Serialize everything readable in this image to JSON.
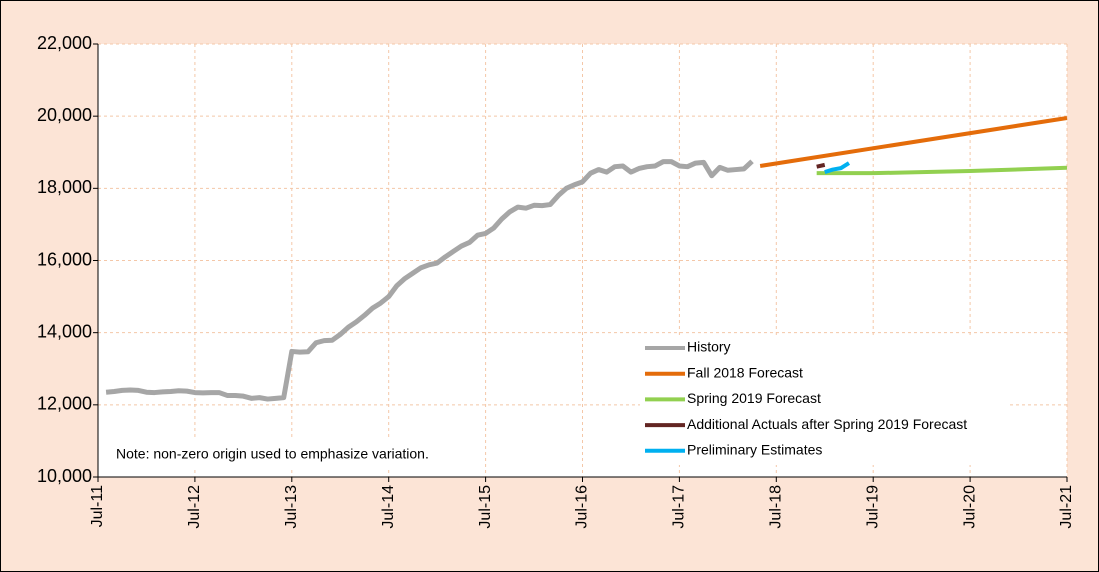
{
  "chart_data": {
    "type": "line",
    "note": "Note: non-zero origin used to emphasize variation.",
    "ylim": [
      10000,
      22000
    ],
    "yticks": [
      {
        "value": 10000,
        "label": "10,000"
      },
      {
        "value": 12000,
        "label": "12,000"
      },
      {
        "value": 14000,
        "label": "14,000"
      },
      {
        "value": 16000,
        "label": "16,000"
      },
      {
        "value": 18000,
        "label": "18,000"
      },
      {
        "value": 20000,
        "label": "20,000"
      },
      {
        "value": 22000,
        "label": "22,000"
      }
    ],
    "xlim": [
      "2011-07",
      "2021-07"
    ],
    "xticks": [
      {
        "value": "2011-07",
        "label": "Jul-11"
      },
      {
        "value": "2012-07",
        "label": "Jul-12"
      },
      {
        "value": "2013-07",
        "label": "Jul-13"
      },
      {
        "value": "2014-07",
        "label": "Jul-14"
      },
      {
        "value": "2015-07",
        "label": "Jul-15"
      },
      {
        "value": "2016-07",
        "label": "Jul-16"
      },
      {
        "value": "2017-07",
        "label": "Jul-17"
      },
      {
        "value": "2018-07",
        "label": "Jul-18"
      },
      {
        "value": "2019-07",
        "label": "Jul-19"
      },
      {
        "value": "2020-07",
        "label": "Jul-20"
      },
      {
        "value": "2021-07",
        "label": "Jul-21"
      }
    ],
    "grid": true,
    "series": [
      {
        "name": "History",
        "color": "#a6a6a6",
        "x": [
          "2011-08",
          "2011-09",
          "2011-10",
          "2011-11",
          "2011-12",
          "2012-01",
          "2012-02",
          "2012-03",
          "2012-04",
          "2012-05",
          "2012-06",
          "2012-07",
          "2012-08",
          "2012-09",
          "2012-10",
          "2012-11",
          "2012-12",
          "2013-01",
          "2013-02",
          "2013-03",
          "2013-04",
          "2013-05",
          "2013-06",
          "2013-07",
          "2013-08",
          "2013-09",
          "2013-10",
          "2013-11",
          "2013-12",
          "2014-01",
          "2014-02",
          "2014-03",
          "2014-04",
          "2014-05",
          "2014-06",
          "2014-07",
          "2014-08",
          "2014-09",
          "2014-10",
          "2014-11",
          "2014-12",
          "2015-01",
          "2015-02",
          "2015-03",
          "2015-04",
          "2015-05",
          "2015-06",
          "2015-07",
          "2015-08",
          "2015-09",
          "2015-10",
          "2015-11",
          "2015-12",
          "2016-01",
          "2016-02",
          "2016-03",
          "2016-04",
          "2016-05",
          "2016-06",
          "2016-07",
          "2016-08",
          "2016-09",
          "2016-10",
          "2016-11",
          "2016-12",
          "2017-01",
          "2017-02",
          "2017-03",
          "2017-04",
          "2017-05",
          "2017-06",
          "2017-07",
          "2017-08",
          "2017-09",
          "2017-10",
          "2017-11",
          "2017-12",
          "2018-01",
          "2018-02",
          "2018-03",
          "2018-04"
        ],
        "values": [
          12350,
          12370,
          12400,
          12410,
          12400,
          12350,
          12340,
          12360,
          12370,
          12390,
          12380,
          12340,
          12330,
          12340,
          12340,
          12260,
          12260,
          12240,
          12180,
          12200,
          12160,
          12180,
          12200,
          13480,
          13460,
          13470,
          13720,
          13780,
          13790,
          13950,
          14150,
          14300,
          14480,
          14680,
          14820,
          15000,
          15300,
          15500,
          15650,
          15800,
          15880,
          15930,
          16100,
          16250,
          16400,
          16500,
          16700,
          16750,
          16900,
          17150,
          17350,
          17480,
          17450,
          17530,
          17520,
          17550,
          17800,
          18000,
          18100,
          18180,
          18420,
          18520,
          18450,
          18600,
          18620,
          18450,
          18550,
          18600,
          18620,
          18740,
          18740,
          18620,
          18600,
          18700,
          18720,
          18350,
          18580,
          18500,
          18520,
          18540,
          18750
        ]
      },
      {
        "name": "Fall 2018 Forecast",
        "color": "#e46c0a",
        "x": [
          "2018-05",
          "2021-07"
        ],
        "values": [
          18620,
          19950
        ]
      },
      {
        "name": "Spring 2019 Forecast",
        "color": "#92d050",
        "x": [
          "2018-12",
          "2019-07",
          "2020-07",
          "2021-07"
        ],
        "values": [
          18420,
          18420,
          18480,
          18570
        ]
      },
      {
        "name": "Additional Actuals after Spring 2019 Forecast",
        "color": "#632523",
        "x": [
          "2018-12",
          "2019-01"
        ],
        "values": [
          18600,
          18650
        ]
      },
      {
        "name": "Preliminary Estimates",
        "color": "#00b0f0",
        "x": [
          "2019-01",
          "2019-02",
          "2019-03",
          "2019-04"
        ],
        "values": [
          18450,
          18520,
          18560,
          18700
        ]
      }
    ]
  }
}
